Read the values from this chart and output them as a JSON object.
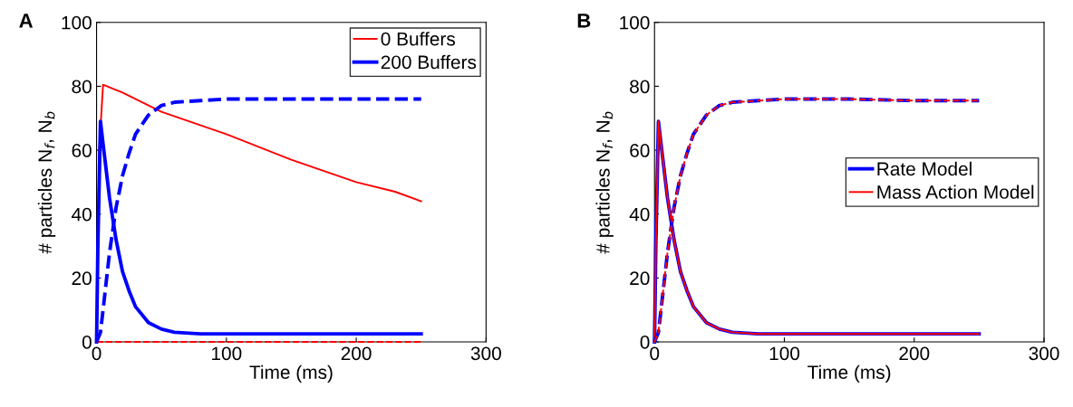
{
  "chart_data": [
    {
      "type": "line",
      "title": "A",
      "xlabel": "Time (ms)",
      "ylabel": "# particles N$_{f}$, N$_{b}$",
      "xlim": [
        0,
        300
      ],
      "xticks": [
        0,
        100,
        200,
        300
      ],
      "ylim": [
        0,
        100
      ],
      "yticks": [
        0,
        20,
        40,
        60,
        80,
        100
      ],
      "grid": false,
      "legend": "top right",
      "marker": "none",
      "series": [
        {
          "name": "0 Buffers",
          "color": "#ff0000",
          "line_style": "solid",
          "x": [
            0,
            2,
            5,
            20,
            50,
            100,
            150,
            200,
            230,
            250
          ],
          "values": [
            0,
            60,
            80.5,
            78,
            72,
            65,
            57,
            50,
            47,
            44
          ]
        },
        {
          "name": "200 Buffers",
          "color": "#0000ff",
          "line_style": "solid",
          "x": [
            0,
            1,
            3,
            5,
            10,
            15,
            20,
            25,
            30,
            40,
            50,
            60,
            80,
            100,
            150,
            200,
            250
          ],
          "values": [
            0,
            30,
            69,
            62,
            45,
            32,
            22,
            16,
            11,
            6,
            4,
            3,
            2.5,
            2.5,
            2.5,
            2.5,
            2.5
          ]
        },
        {
          "color": "#ff0000",
          "line_style": "dashed",
          "x": [
            0,
            250
          ],
          "values": [
            0,
            0
          ]
        },
        {
          "color": "#0000ff",
          "line_style": "dashed",
          "x": [
            0,
            3,
            5,
            10,
            15,
            20,
            25,
            30,
            40,
            50,
            60,
            80,
            100,
            150,
            200,
            250
          ],
          "values": [
            0,
            3,
            10,
            28,
            42,
            52,
            59,
            65,
            71,
            74,
            75,
            75.5,
            76,
            76,
            76,
            76
          ]
        }
      ]
    },
    {
      "type": "line",
      "title": "B",
      "xlabel": "Time (ms)",
      "ylabel": "# particles N$_{f}$, N$_{b}$",
      "xlim": [
        0,
        300
      ],
      "xticks": [
        0,
        100,
        200,
        300
      ],
      "ylim": [
        0,
        100
      ],
      "yticks": [
        0,
        20,
        40,
        60,
        80,
        100
      ],
      "grid": false,
      "legend": "right",
      "marker": "none",
      "series": [
        {
          "name": "Rate Model",
          "color": "#0000ff",
          "line_style": "solid",
          "x": [
            0,
            1,
            3,
            5,
            10,
            15,
            20,
            25,
            30,
            40,
            50,
            60,
            80,
            100,
            150,
            200,
            250
          ],
          "values": [
            0,
            30,
            69,
            62,
            45,
            32,
            22,
            16,
            11,
            6,
            4,
            3,
            2.5,
            2.5,
            2.5,
            2.5,
            2.5
          ]
        },
        {
          "name": "Mass Action Model",
          "color": "#ff0000",
          "line_style": "solid",
          "x": [
            0,
            1,
            3,
            5,
            10,
            15,
            20,
            25,
            30,
            40,
            50,
            60,
            80,
            100,
            150,
            200,
            250
          ],
          "values": [
            0,
            30,
            69,
            62,
            45,
            32,
            22,
            16,
            11,
            6,
            4,
            3,
            2.5,
            2.5,
            2.5,
            2.5,
            2.5
          ]
        },
        {
          "color": "#0000ff",
          "line_style": "dashed",
          "x": [
            0,
            3,
            5,
            10,
            15,
            20,
            25,
            30,
            40,
            50,
            60,
            80,
            100,
            150,
            200,
            250
          ],
          "values": [
            0,
            3,
            10,
            28,
            42,
            52,
            59,
            65,
            71,
            74,
            75,
            75.5,
            76,
            76,
            75.5,
            75.5
          ]
        },
        {
          "color": "#ff0000",
          "line_style": "dashed",
          "x": [
            0,
            3,
            5,
            10,
            15,
            20,
            25,
            30,
            40,
            50,
            60,
            80,
            100,
            150,
            200,
            250
          ],
          "values": [
            0,
            3,
            10,
            28,
            42,
            52,
            59,
            65,
            71,
            74,
            75,
            75.5,
            76,
            76,
            75.5,
            75.5
          ]
        }
      ]
    }
  ]
}
